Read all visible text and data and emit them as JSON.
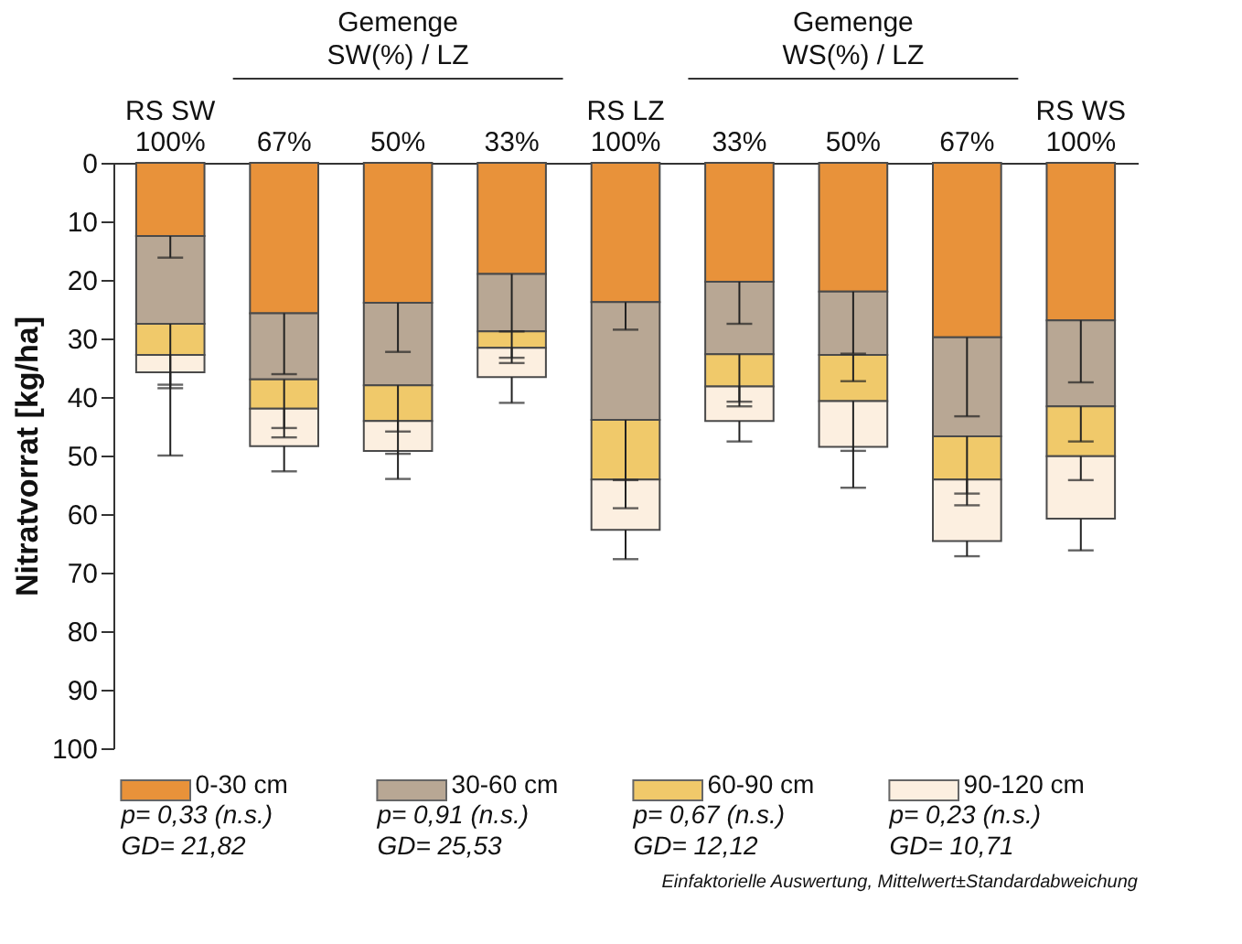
{
  "chart_data": {
    "type": "bar",
    "stacked": true,
    "ylabel": "Nitratvorrat [kg/ha]",
    "categories": [
      "RS SW\n100%",
      "67%",
      "50%",
      "33%",
      "RS LZ\n100%",
      "33%",
      "50%",
      "67%",
      "RS WS\n100%"
    ],
    "series": [
      {
        "name": "0-30 cm",
        "color": "#e8923a",
        "values": [
          12.5,
          25.7,
          23.9,
          19.0,
          23.8,
          20.3,
          22.0,
          29.8,
          26.9
        ],
        "errors": [
          [
            12.5,
            16.2
          ],
          [
            25.7,
            36.1
          ],
          [
            23.9,
            32.3
          ],
          [
            19.0,
            28.8
          ],
          [
            23.8,
            28.5
          ],
          [
            20.3,
            27.5
          ],
          [
            22.0,
            32.6
          ],
          [
            29.8,
            43.3
          ],
          [
            26.9,
            37.5
          ]
        ]
      },
      {
        "name": "30-60 cm",
        "color": "#b8a794",
        "values": [
          15.0,
          11.3,
          14.1,
          9.8,
          20.1,
          12.4,
          10.8,
          16.9,
          14.7
        ],
        "errors": [
          [
            27.5,
            37.9
          ],
          [
            37.0,
            45.3
          ],
          [
            38.0,
            45.9
          ],
          [
            28.8,
            33.3
          ],
          [
            43.9,
            54.2
          ],
          [
            32.7,
            40.8
          ],
          [
            32.8,
            37.3
          ],
          [
            46.7,
            56.5
          ],
          [
            41.6,
            47.6
          ]
        ]
      },
      {
        "name": "60-90 cm",
        "color": "#f0c96a",
        "values": [
          5.3,
          5.0,
          6.1,
          2.8,
          10.2,
          5.5,
          7.9,
          7.4,
          8.5
        ],
        "errors": [
          [
            32.8,
            38.5
          ],
          [
            42.0,
            46.9
          ],
          [
            44.1,
            49.7
          ],
          [
            31.6,
            34.2
          ],
          [
            54.1,
            59.0
          ],
          [
            38.2,
            41.6
          ],
          [
            40.7,
            49.2
          ],
          [
            54.1,
            58.5
          ],
          [
            50.1,
            54.2
          ]
        ]
      },
      {
        "name": "90-120 cm",
        "color": "#fcefe0",
        "values": [
          3.0,
          6.4,
          5.1,
          5.0,
          8.6,
          5.9,
          7.8,
          10.5,
          10.7
        ],
        "errors": [
          [
            35.8,
            50.0
          ],
          [
            48.4,
            52.7
          ],
          [
            49.2,
            54.0
          ],
          [
            36.6,
            41.0
          ],
          [
            62.7,
            67.7
          ],
          [
            44.1,
            47.6
          ],
          [
            48.5,
            55.5
          ],
          [
            64.6,
            67.2
          ],
          [
            60.8,
            66.2
          ]
        ]
      }
    ],
    "ylim": [
      100,
      0
    ],
    "yticks": [
      0,
      10,
      20,
      30,
      40,
      50,
      60,
      70,
      80,
      90,
      100
    ],
    "grid": false,
    "legend": "bottom",
    "annotations": [
      "Gemenge\nSW(%) / LZ",
      "Gemenge\nWS(%) / LZ",
      "p= 0,33 (n.s.)",
      "p= 0,91 (n.s.)",
      "p= 0,67 (n.s.)",
      "p= 0,23 (n.s.)",
      "GD= 21,82",
      "GD= 25,53",
      "GD= 12,12",
      "GD= 10,71",
      "Einfaktorielle Auswertung, Mittelwert±Standardabweichung"
    ]
  }
}
